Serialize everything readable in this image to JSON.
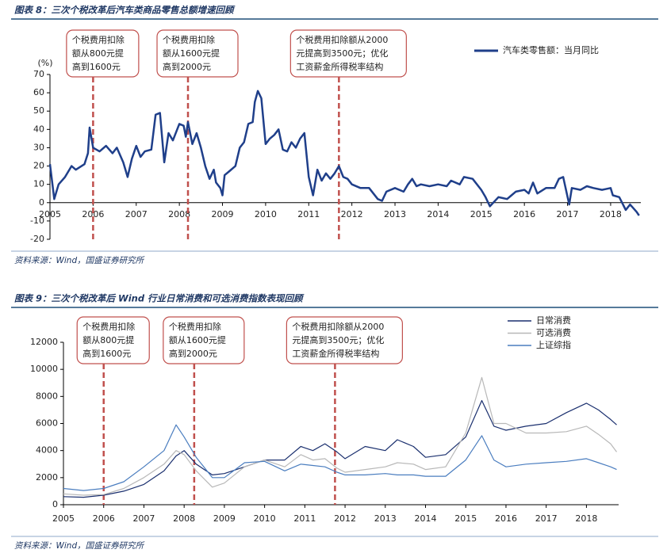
{
  "chart_data": [
    {
      "type": "line",
      "title": "图表 8：三次个税改革后汽车类商品零售总额增速回顾",
      "y_label": "(%)",
      "source": "资料来源：Wind，国盛证券研究所",
      "xlim": [
        2005,
        2018.7
      ],
      "xticks": [
        2005,
        2006,
        2007,
        2008,
        2009,
        2010,
        2011,
        2012,
        2013,
        2014,
        2015,
        2016,
        2017,
        2018
      ],
      "ylim": [
        -20,
        70
      ],
      "yticks": [
        -20,
        -10,
        0,
        10,
        20,
        30,
        40,
        50,
        60,
        70
      ],
      "legend": "top-right",
      "x": [
        2005.0,
        2005.1,
        2005.2,
        2005.35,
        2005.5,
        2005.6,
        2005.8,
        2005.88,
        2005.92,
        2006.0,
        2006.15,
        2006.3,
        2006.45,
        2006.55,
        2006.7,
        2006.8,
        2006.9,
        2007.0,
        2007.1,
        2007.2,
        2007.35,
        2007.45,
        2007.55,
        2007.65,
        2007.75,
        2007.85,
        2008.0,
        2008.1,
        2008.15,
        2008.2,
        2008.3,
        2008.4,
        2008.5,
        2008.6,
        2008.7,
        2008.8,
        2008.85,
        2008.95,
        2009.0,
        2009.05,
        2009.15,
        2009.3,
        2009.4,
        2009.5,
        2009.6,
        2009.7,
        2009.75,
        2009.82,
        2009.9,
        2010.0,
        2010.1,
        2010.2,
        2010.3,
        2010.4,
        2010.5,
        2010.6,
        2010.7,
        2010.8,
        2010.9,
        2011.0,
        2011.1,
        2011.2,
        2011.3,
        2011.4,
        2011.5,
        2011.6,
        2011.7,
        2011.8,
        2011.9,
        2012.0,
        2012.2,
        2012.4,
        2012.5,
        2012.6,
        2012.7,
        2012.8,
        2013.0,
        2013.2,
        2013.3,
        2013.4,
        2013.5,
        2013.6,
        2013.8,
        2014.0,
        2014.2,
        2014.3,
        2014.5,
        2014.6,
        2014.8,
        2015.0,
        2015.1,
        2015.2,
        2015.4,
        2015.6,
        2015.7,
        2015.8,
        2016.0,
        2016.1,
        2016.2,
        2016.3,
        2016.5,
        2016.7,
        2016.8,
        2016.9,
        2017.04,
        2017.1,
        2017.3,
        2017.45,
        2017.6,
        2017.8,
        2018.0,
        2018.05,
        2018.2,
        2018.35,
        2018.45,
        2018.6,
        2018.66
      ],
      "series": [
        {
          "name": "汽车类零售额：当月同比",
          "color": "#1f3f8a",
          "values": [
            21,
            2,
            10,
            14,
            20,
            18,
            21,
            27,
            41,
            30,
            28,
            31,
            27,
            30,
            22,
            14,
            24,
            31,
            25,
            28,
            29,
            48,
            49,
            22,
            38,
            34,
            43,
            42,
            36,
            44,
            32,
            38,
            30,
            20,
            13,
            18,
            11,
            8,
            4,
            15,
            17,
            20,
            30,
            33,
            43,
            44,
            55,
            61,
            57,
            32,
            35,
            37,
            40,
            29,
            28,
            33,
            30,
            35,
            38,
            14,
            4,
            18,
            12,
            16,
            13,
            16,
            20,
            14,
            13,
            10,
            8,
            8,
            5,
            2,
            1,
            6,
            8,
            6,
            10,
            13,
            9,
            10,
            9,
            10,
            9,
            12,
            10,
            14,
            13,
            7,
            3,
            -2,
            3,
            2,
            4,
            6,
            7,
            5,
            11,
            5,
            8,
            8,
            13,
            14,
            -1,
            8,
            7,
            9,
            8,
            7,
            8,
            4,
            3,
            -4,
            -1,
            -5,
            -7
          ]
        }
      ],
      "annotations": [
        {
          "x": 2006.0,
          "text": [
            "个税费用扣除",
            "额从800元提",
            "高到1600元"
          ]
        },
        {
          "x": 2008.2,
          "text": [
            "个税费用扣除",
            "额从1600元提",
            "高到2000元"
          ]
        },
        {
          "x": 2011.7,
          "text": [
            "个税费用扣除额从2000",
            "元提高到3500元；优化",
            "工资薪金所得税率结构"
          ]
        }
      ]
    },
    {
      "type": "line",
      "title": "图表 9：三次个税改革后 Wind 行业日常消费和可选消费指数表现回顾",
      "source": "资料来源：Wind，国盛证券研究所",
      "xlim": [
        2005,
        2018.8
      ],
      "xticks": [
        2005,
        2006,
        2007,
        2008,
        2009,
        2010,
        2011,
        2012,
        2013,
        2014,
        2015,
        2016,
        2017,
        2018
      ],
      "ylim": [
        0,
        12000
      ],
      "yticks": [
        0,
        2000,
        4000,
        6000,
        8000,
        10000,
        12000
      ],
      "legend": "top-right",
      "x": [
        2005.0,
        2005.5,
        2006.0,
        2006.5,
        2007.0,
        2007.5,
        2007.8,
        2008.0,
        2008.3,
        2008.7,
        2009.0,
        2009.5,
        2010.0,
        2010.5,
        2010.9,
        2011.2,
        2011.5,
        2011.8,
        2012.0,
        2012.5,
        2013.0,
        2013.3,
        2013.7,
        2014.0,
        2014.5,
        2015.0,
        2015.4,
        2015.7,
        2016.0,
        2016.5,
        2017.0,
        2017.5,
        2018.0,
        2018.3,
        2018.6,
        2018.75
      ],
      "series": [
        {
          "name": "日常消费",
          "color": "#1a2f6e",
          "values": [
            600,
            550,
            700,
            1000,
            1500,
            2500,
            3600,
            4000,
            3000,
            2200,
            2300,
            2800,
            3300,
            3300,
            4300,
            4000,
            4500,
            3900,
            3400,
            4300,
            4000,
            4800,
            4300,
            3500,
            3700,
            5000,
            7700,
            5800,
            5500,
            5800,
            6000,
            6800,
            7500,
            7000,
            6300,
            5900
          ]
        },
        {
          "name": "可选消费",
          "color": "#b8b8b8",
          "values": [
            800,
            700,
            750,
            1200,
            2000,
            3000,
            4000,
            3700,
            2500,
            1300,
            1600,
            2800,
            3300,
            2800,
            3700,
            3300,
            3400,
            2700,
            2400,
            2600,
            2800,
            3100,
            3000,
            2600,
            2800,
            5300,
            9400,
            6000,
            6000,
            5300,
            5300,
            5400,
            5800,
            5200,
            4500,
            3900
          ]
        },
        {
          "name": "上证综指",
          "color": "#4a7dbf",
          "values": [
            1200,
            1050,
            1200,
            1700,
            2800,
            4000,
            5900,
            5000,
            3500,
            2000,
            2000,
            3100,
            3200,
            2500,
            3000,
            2900,
            2800,
            2400,
            2200,
            2200,
            2300,
            2200,
            2200,
            2100,
            2100,
            3300,
            5100,
            3300,
            2800,
            3000,
            3100,
            3200,
            3400,
            3100,
            2800,
            2600
          ]
        }
      ],
      "annotations": [
        {
          "x": 2006.0,
          "text": [
            "个税费用扣除",
            "额从800元提",
            "高到1600元"
          ]
        },
        {
          "x": 2008.25,
          "text": [
            "个税费用扣除",
            "额从1600元提",
            "高到2000元"
          ]
        },
        {
          "x": 2011.75,
          "text": [
            "个税费用扣除额从2000",
            "元提高到3500元；优化",
            "工资薪金所得税率结构"
          ]
        }
      ]
    }
  ]
}
